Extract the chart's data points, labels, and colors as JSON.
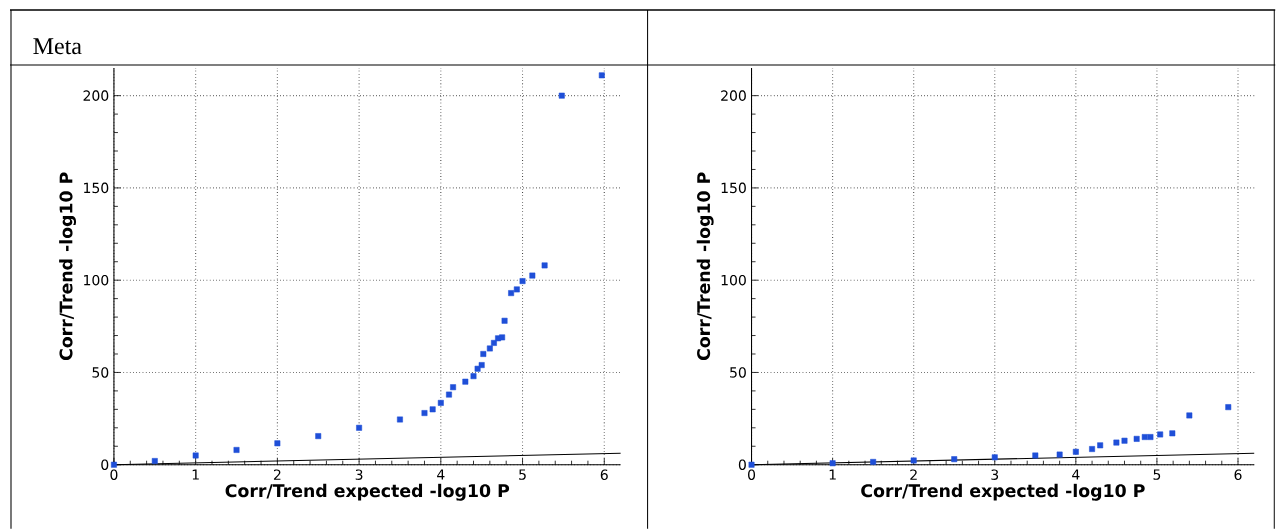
{
  "chart_data": [
    {
      "type": "scatter",
      "title": "Meta",
      "xlabel": "Corr/Trend  expected -log10 P",
      "ylabel": "Corr/Trend  -log10 P",
      "xlim": [
        0,
        6.2
      ],
      "ylim": [
        0,
        215
      ],
      "xticks": [
        0,
        1,
        2,
        3,
        4,
        5,
        6
      ],
      "yticks": [
        0,
        50,
        100,
        150,
        200
      ],
      "grid": true,
      "marker": "square",
      "series": [
        {
          "color": "#1f4fd8",
          "x": [
            0,
            0.5,
            1,
            1.5,
            2,
            2.5,
            3,
            3.5,
            3.8,
            3.9,
            4,
            4.1,
            4.15,
            4.3,
            4.4,
            4.45,
            4.5,
            4.52,
            4.6,
            4.65,
            4.7,
            4.75,
            4.78,
            4.86,
            4.93,
            5.0,
            5.12,
            5.27,
            5.48,
            5.97
          ],
          "values": [
            0,
            2,
            5,
            8,
            11.6,
            15.5,
            20,
            24.5,
            28,
            30,
            33.5,
            38,
            42,
            45,
            48,
            52,
            54,
            60,
            63,
            66,
            68.5,
            69,
            78,
            93,
            95,
            99.5,
            102.5,
            108,
            200,
            211
          ]
        },
        {
          "type": "line",
          "color": "#000000",
          "marker": "none",
          "x": [
            0,
            6.2
          ],
          "values": [
            0,
            6.2
          ]
        }
      ]
    },
    {
      "type": "scatter",
      "xlabel": "Corr/Trend  expected -log10 P",
      "ylabel": "Corr/Trend  -log10 P",
      "xlim": [
        0,
        6.2
      ],
      "ylim": [
        0,
        215
      ],
      "xticks": [
        0,
        1,
        2,
        3,
        4,
        5,
        6
      ],
      "yticks": [
        0,
        50,
        100,
        150,
        200
      ],
      "grid": true,
      "marker": "square",
      "series": [
        {
          "color": "#1f4fd8",
          "x": [
            0,
            1,
            1.5,
            2,
            2.5,
            3,
            3.5,
            3.8,
            4,
            4.2,
            4.3,
            4.5,
            4.6,
            4.75,
            4.85,
            4.92,
            5.04,
            5.19,
            5.4,
            5.88
          ],
          "values": [
            0,
            0.8,
            1.5,
            2.3,
            3,
            4,
            5,
            5.5,
            7,
            8.5,
            10.5,
            12,
            13,
            14,
            15,
            15,
            16.4,
            17,
            26.7,
            31.2
          ]
        },
        {
          "type": "line",
          "color": "#000000",
          "marker": "none",
          "x": [
            0,
            6.2
          ],
          "values": [
            0,
            6.2
          ]
        }
      ]
    }
  ]
}
